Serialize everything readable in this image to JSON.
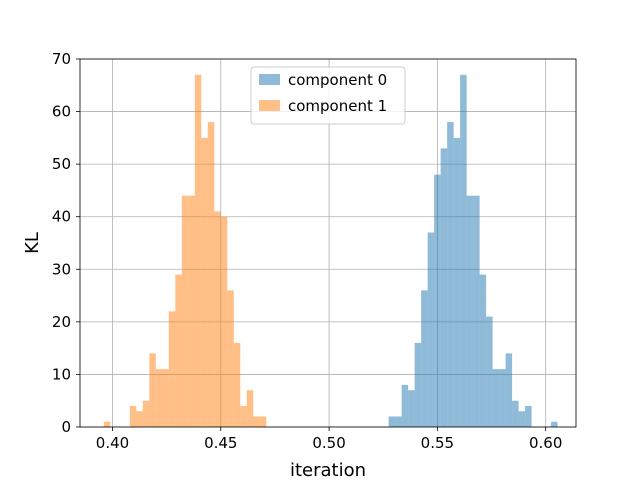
{
  "chart_data": {
    "type": "histogram",
    "xlabel": "iteration",
    "ylabel": "KL",
    "xlim": [
      0.385,
      0.614
    ],
    "ylim": [
      0,
      70
    ],
    "grid": true,
    "legend_position": "top-center",
    "bin_width": 0.003,
    "xticks": [
      {
        "value": 0.4,
        "label": "0.40"
      },
      {
        "value": 0.45,
        "label": "0.45"
      },
      {
        "value": 0.5,
        "label": "0.50"
      },
      {
        "value": 0.55,
        "label": "0.55"
      },
      {
        "value": 0.6,
        "label": "0.60"
      }
    ],
    "yticks": [
      {
        "value": 0,
        "label": "0"
      },
      {
        "value": 10,
        "label": "10"
      },
      {
        "value": 20,
        "label": "20"
      },
      {
        "value": 30,
        "label": "30"
      },
      {
        "value": 40,
        "label": "40"
      },
      {
        "value": 50,
        "label": "50"
      },
      {
        "value": 60,
        "label": "60"
      },
      {
        "value": 70,
        "label": "70"
      }
    ],
    "series": [
      {
        "name": "component 0",
        "color": "#1f77b4",
        "alpha": 0.5,
        "bin_start": 0.5275,
        "counts": [
          2,
          2,
          8,
          7,
          16,
          26,
          37,
          48,
          53,
          58,
          55,
          67,
          44,
          44,
          29,
          21,
          11,
          11,
          14,
          5,
          3,
          4,
          0,
          0,
          0,
          1
        ]
      },
      {
        "name": "component 1",
        "color": "#ff7f0e",
        "alpha": 0.5,
        "bin_start": 0.396,
        "counts": [
          1,
          0,
          0,
          0,
          4,
          3,
          5,
          14,
          11,
          11,
          22,
          29,
          44,
          44,
          67,
          55,
          58,
          41,
          40,
          26,
          16,
          4,
          7,
          2,
          2
        ]
      }
    ]
  }
}
